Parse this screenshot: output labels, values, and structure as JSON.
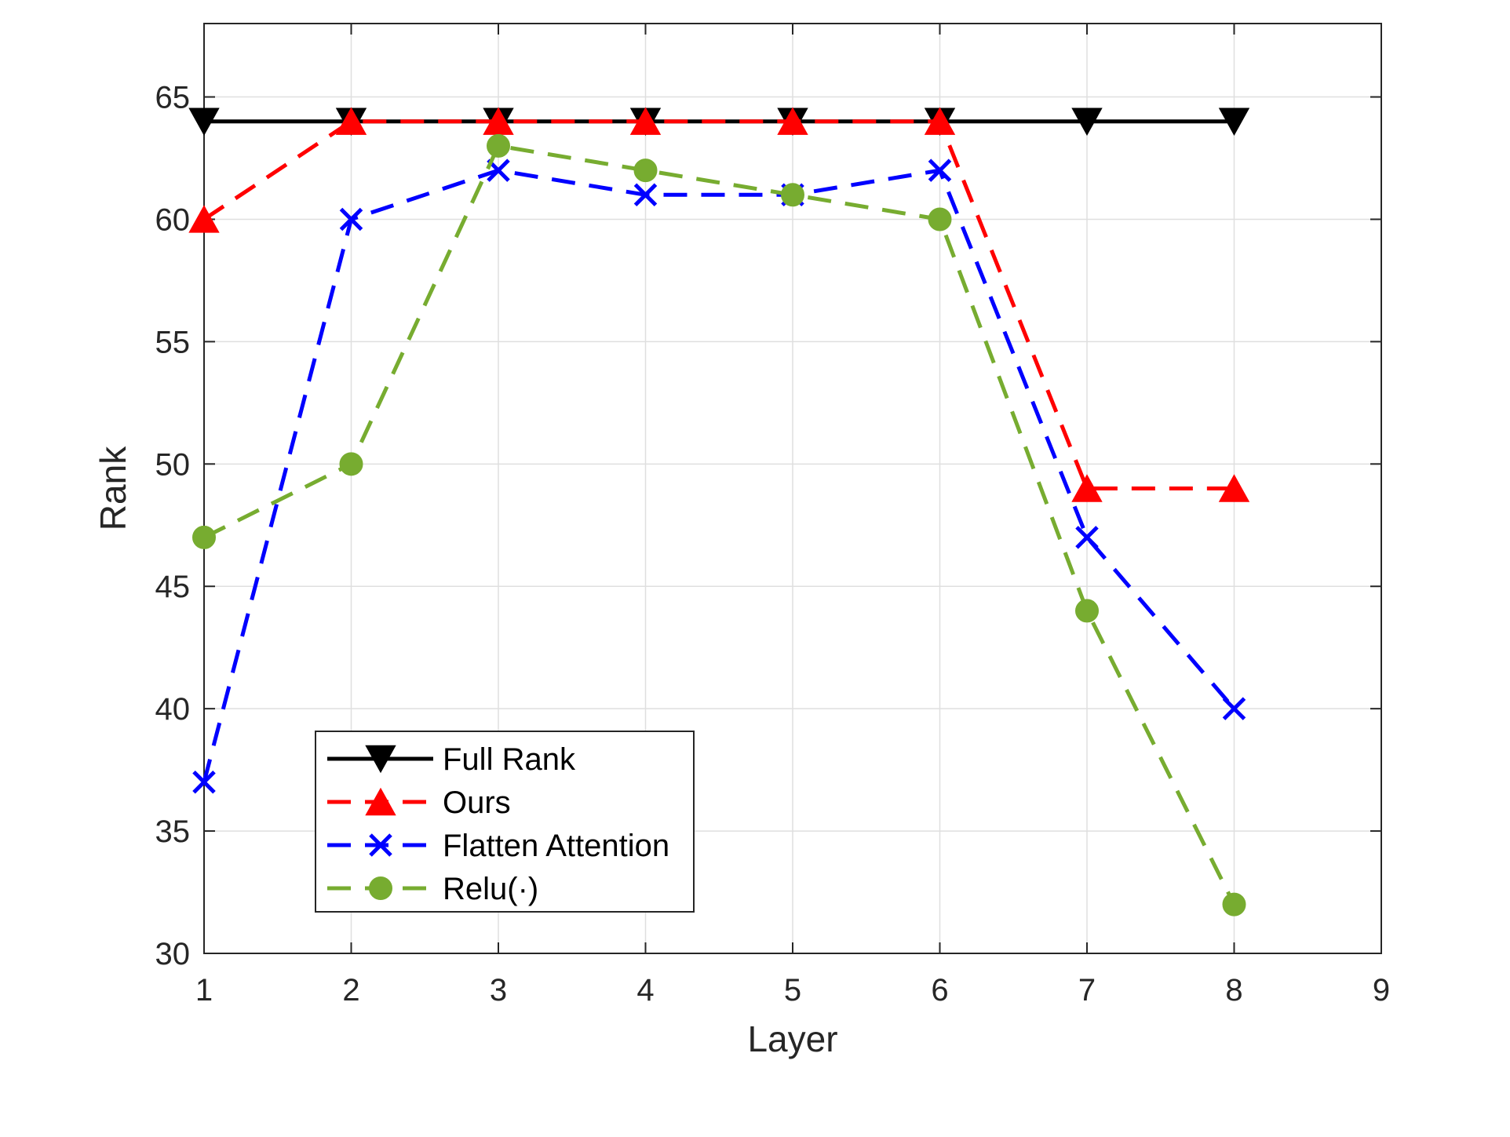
{
  "chart_data": {
    "type": "line",
    "title": "",
    "xlabel": "Layer",
    "ylabel": "Rank",
    "xlim": [
      1,
      9
    ],
    "ylim": [
      30,
      68
    ],
    "xticks": [
      1,
      2,
      3,
      4,
      5,
      6,
      7,
      8,
      9
    ],
    "yticks": [
      30,
      35,
      40,
      45,
      50,
      55,
      60,
      65
    ],
    "grid": true,
    "legend_position": "bottom-left",
    "x": [
      1,
      2,
      3,
      4,
      5,
      6,
      7,
      8
    ],
    "series": [
      {
        "name": "Full Rank",
        "values": [
          64,
          64,
          64,
          64,
          64,
          64,
          64,
          64
        ],
        "color": "#000000",
        "dash": "solid",
        "marker": "triangle-down"
      },
      {
        "name": "Ours",
        "values": [
          60,
          64,
          64,
          64,
          64,
          64,
          49,
          49
        ],
        "color": "#ff0000",
        "dash": "dashed",
        "marker": "triangle-up"
      },
      {
        "name": "Flatten Attention",
        "values": [
          37,
          60,
          62,
          61,
          61,
          62,
          47,
          40
        ],
        "color": "#0000ff",
        "dash": "dashed",
        "marker": "x"
      },
      {
        "name": "Relu(·)",
        "values": [
          47,
          50,
          63,
          62,
          61,
          60,
          44,
          32
        ],
        "color": "#77ac30",
        "dash": "dashed",
        "marker": "circle"
      }
    ]
  }
}
